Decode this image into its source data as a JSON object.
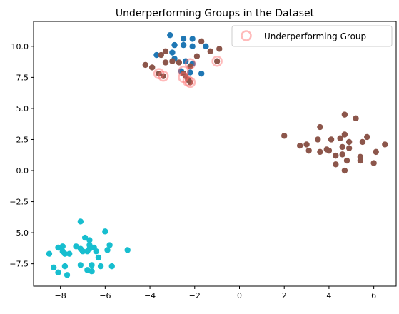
{
  "chart_data": {
    "type": "scatter",
    "title": "Underperforming Groups in the Dataset",
    "xlabel": "",
    "ylabel": "",
    "xlim": [
      -9.2,
      7.0
    ],
    "ylim": [
      -9.3,
      12.0
    ],
    "x_ticks": [
      -8,
      -6,
      -4,
      -2,
      0,
      2,
      4,
      6
    ],
    "x_tick_labels": [
      "−8",
      "−6",
      "−4",
      "−2",
      "0",
      "2",
      "4",
      "6"
    ],
    "y_ticks": [
      -7.5,
      -5.0,
      -2.5,
      0.0,
      2.5,
      5.0,
      7.5,
      10.0
    ],
    "y_tick_labels": [
      "−7.5",
      "−5.0",
      "−2.5",
      "0.0",
      "2.5",
      "5.0",
      "7.5",
      "10.0"
    ],
    "grid": false,
    "legend": {
      "placement": "top-right",
      "entries": [
        "Underperforming Group"
      ]
    },
    "series": [
      {
        "color": "#1f77b4",
        "points": [
          [
            -3.1,
            10.9
          ],
          [
            -2.5,
            10.6
          ],
          [
            -2.1,
            10.6
          ],
          [
            -2.9,
            10.1
          ],
          [
            -2.5,
            10.1
          ],
          [
            -2.1,
            10.0
          ],
          [
            -1.5,
            10.0
          ],
          [
            -3.0,
            9.5
          ],
          [
            -3.7,
            9.3
          ],
          [
            -2.9,
            9.0
          ],
          [
            -2.4,
            8.8
          ],
          [
            -2.6,
            8.0
          ],
          [
            -2.2,
            7.9
          ],
          [
            -1.7,
            7.8
          ],
          [
            -2.1,
            8.6
          ]
        ]
      },
      {
        "color": "#8c564b",
        "points": [
          [
            -4.2,
            8.5
          ],
          [
            -3.9,
            8.3
          ],
          [
            -3.5,
            9.3
          ],
          [
            -3.3,
            9.6
          ],
          [
            -3.0,
            8.8
          ],
          [
            -3.3,
            8.7
          ],
          [
            -3.6,
            7.8
          ],
          [
            -3.4,
            7.6
          ],
          [
            -2.7,
            8.7
          ],
          [
            -2.5,
            7.8
          ],
          [
            -2.4,
            7.6
          ],
          [
            -2.3,
            7.3
          ],
          [
            -2.2,
            7.1
          ],
          [
            -1.9,
            9.2
          ],
          [
            -1.7,
            10.4
          ],
          [
            -1.3,
            9.6
          ],
          [
            -1.0,
            8.8
          ],
          [
            -0.9,
            9.8
          ],
          [
            -2.2,
            8.4
          ],
          [
            2.0,
            2.8
          ],
          [
            2.7,
            2.0
          ],
          [
            3.0,
            2.1
          ],
          [
            3.1,
            1.6
          ],
          [
            3.5,
            2.5
          ],
          [
            3.6,
            3.5
          ],
          [
            3.6,
            1.5
          ],
          [
            3.9,
            1.7
          ],
          [
            4.0,
            1.6
          ],
          [
            4.1,
            2.5
          ],
          [
            4.3,
            1.2
          ],
          [
            4.3,
            0.5
          ],
          [
            4.5,
            2.6
          ],
          [
            4.6,
            1.3
          ],
          [
            4.6,
            1.9
          ],
          [
            4.7,
            0.0
          ],
          [
            4.7,
            2.9
          ],
          [
            4.7,
            4.5
          ],
          [
            4.8,
            0.8
          ],
          [
            4.9,
            1.8
          ],
          [
            4.9,
            2.3
          ],
          [
            5.2,
            4.2
          ],
          [
            5.4,
            1.1
          ],
          [
            5.4,
            0.8
          ],
          [
            5.5,
            2.3
          ],
          [
            5.7,
            2.7
          ],
          [
            6.0,
            0.6
          ],
          [
            6.1,
            1.5
          ],
          [
            6.5,
            2.1
          ]
        ]
      },
      {
        "color": "#17becf",
        "points": [
          [
            -8.5,
            -6.7
          ],
          [
            -8.3,
            -7.8
          ],
          [
            -8.1,
            -6.2
          ],
          [
            -8.1,
            -8.2
          ],
          [
            -7.9,
            -6.1
          ],
          [
            -7.9,
            -6.5
          ],
          [
            -7.8,
            -6.7
          ],
          [
            -7.8,
            -7.7
          ],
          [
            -7.7,
            -8.4
          ],
          [
            -7.6,
            -6.7
          ],
          [
            -7.3,
            -6.1
          ],
          [
            -7.1,
            -4.1
          ],
          [
            -7.1,
            -6.3
          ],
          [
            -7.1,
            -7.6
          ],
          [
            -7.0,
            -6.5
          ],
          [
            -6.9,
            -5.4
          ],
          [
            -6.8,
            -6.5
          ],
          [
            -6.8,
            -8.0
          ],
          [
            -6.7,
            -5.6
          ],
          [
            -6.7,
            -6.0
          ],
          [
            -6.7,
            -6.3
          ],
          [
            -6.6,
            -8.1
          ],
          [
            -6.6,
            -7.6
          ],
          [
            -6.5,
            -6.2
          ],
          [
            -6.4,
            -6.5
          ],
          [
            -6.3,
            -7.0
          ],
          [
            -6.2,
            -7.7
          ],
          [
            -6.0,
            -4.9
          ],
          [
            -5.9,
            -6.4
          ],
          [
            -5.8,
            -6.0
          ],
          [
            -5.7,
            -7.7
          ],
          [
            -5.0,
            -6.4
          ]
        ]
      }
    ],
    "underperforming": {
      "name": "Underperforming Group",
      "color": "#ff6666",
      "points": [
        [
          -3.6,
          7.8
        ],
        [
          -3.4,
          7.6
        ],
        [
          -2.5,
          8.0
        ],
        [
          -2.5,
          7.5
        ],
        [
          -2.3,
          7.2
        ],
        [
          -2.2,
          8.6
        ],
        [
          -2.2,
          7.1
        ],
        [
          -1.0,
          8.8
        ]
      ]
    }
  }
}
